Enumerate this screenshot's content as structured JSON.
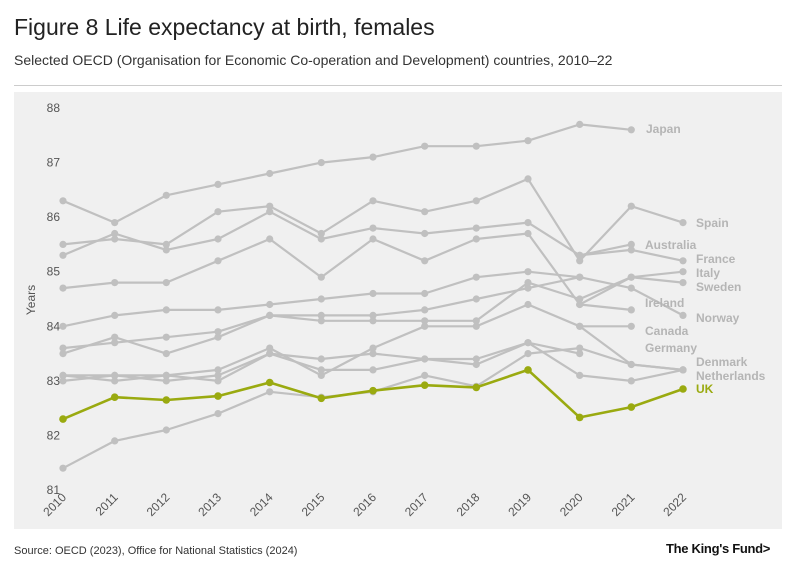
{
  "header": {
    "title": "Figure 8 Life expectancy at birth, females",
    "subtitle": "Selected OECD (Organisation for Economic Co-operation and Development) countries, 2010–22"
  },
  "footer": {
    "source": "Source: OECD (2023), Office for National Statistics (2024)",
    "logo": "The King's Fund>"
  },
  "chart_data": {
    "type": "line",
    "title": "Figure 8 Life expectancy at birth, females",
    "subtitle": "Selected OECD (Organisation for Economic Co-operation and Development) countries, 2010–22",
    "xlabel": "",
    "ylabel": "Years",
    "x": [
      2010,
      2011,
      2012,
      2013,
      2014,
      2015,
      2016,
      2017,
      2018,
      2019,
      2020,
      2021,
      2022
    ],
    "ylim": [
      81,
      88
    ],
    "yticks": [
      81,
      82,
      83,
      84,
      85,
      86,
      87,
      88
    ],
    "grid": false,
    "colors": {
      "highlight": "#9aaa10",
      "other": "#c0c0c0",
      "label_grey": "#b5b5b5",
      "tick_text": "#555555",
      "panel": "#f0f0f0"
    },
    "series": [
      {
        "name": "Japan",
        "highlight": false,
        "values": [
          86.3,
          85.9,
          86.4,
          86.6,
          86.8,
          87.0,
          87.1,
          87.3,
          87.3,
          87.4,
          87.7,
          87.6,
          null
        ]
      },
      {
        "name": "Spain",
        "highlight": false,
        "values": [
          85.5,
          85.6,
          85.5,
          86.1,
          86.2,
          85.7,
          86.3,
          86.1,
          86.3,
          86.7,
          85.2,
          86.2,
          85.9
        ]
      },
      {
        "name": "Australia",
        "highlight": false,
        "values": [
          null,
          null,
          null,
          null,
          null,
          null,
          null,
          null,
          null,
          null,
          85.3,
          85.5,
          null
        ]
      },
      {
        "name": "France",
        "highlight": false,
        "values": [
          85.3,
          85.7,
          85.4,
          85.6,
          86.1,
          85.6,
          85.8,
          85.7,
          85.8,
          85.9,
          85.3,
          85.4,
          85.2
        ]
      },
      {
        "name": "Italy",
        "highlight": false,
        "values": [
          84.7,
          84.8,
          84.8,
          85.2,
          85.6,
          84.9,
          85.6,
          85.2,
          85.6,
          85.7,
          84.4,
          84.9,
          85.0
        ]
      },
      {
        "name": "Sweden",
        "highlight": false,
        "values": [
          83.6,
          83.7,
          83.8,
          83.9,
          84.2,
          84.1,
          84.1,
          84.1,
          84.1,
          84.8,
          84.5,
          84.9,
          84.8
        ]
      },
      {
        "name": "Ireland",
        "highlight": false,
        "values": [
          null,
          null,
          null,
          null,
          null,
          null,
          null,
          null,
          null,
          null,
          84.4,
          84.3,
          null
        ]
      },
      {
        "name": "Norway",
        "highlight": false,
        "values": [
          84.0,
          84.2,
          84.3,
          84.3,
          84.4,
          84.5,
          84.6,
          84.6,
          84.9,
          85.0,
          84.9,
          84.7,
          84.2
        ]
      },
      {
        "name": "Canada",
        "highlight": false,
        "values": [
          null,
          null,
          null,
          null,
          null,
          null,
          null,
          null,
          null,
          null,
          84.0,
          84.0,
          null
        ]
      },
      {
        "name": "Germany",
        "highlight": false,
        "values": [
          83.0,
          83.1,
          83.1,
          83.2,
          83.6,
          83.1,
          83.6,
          84.0,
          84.0,
          84.4,
          84.0,
          83.3,
          83.2
        ]
      },
      {
        "name": "Denmark",
        "highlight": false,
        "values": [
          81.4,
          81.9,
          82.1,
          82.4,
          82.8,
          82.7,
          82.8,
          83.1,
          82.9,
          83.5,
          83.6,
          83.3,
          83.2
        ]
      },
      {
        "name": "Netherlands",
        "highlight": false,
        "values": [
          83.1,
          83.1,
          83.0,
          83.1,
          83.5,
          83.2,
          83.2,
          83.4,
          83.3,
          83.7,
          83.1,
          83.0,
          83.2
        ]
      },
      {
        "name": "UK",
        "highlight": true,
        "values": [
          82.3,
          82.7,
          82.65,
          82.72,
          82.97,
          82.68,
          82.82,
          82.92,
          82.88,
          83.2,
          82.33,
          82.52,
          82.85
        ]
      }
    ],
    "extra_paths": [
      [
        83.5,
        83.8,
        83.5,
        83.8,
        84.2,
        84.2,
        84.2,
        84.3,
        84.5,
        84.7,
        84.9,
        null,
        null
      ],
      [
        83.1,
        83.0,
        83.1,
        83.0,
        83.5,
        83.4,
        83.5,
        83.4,
        83.4,
        83.7,
        83.5,
        null,
        null
      ]
    ]
  }
}
